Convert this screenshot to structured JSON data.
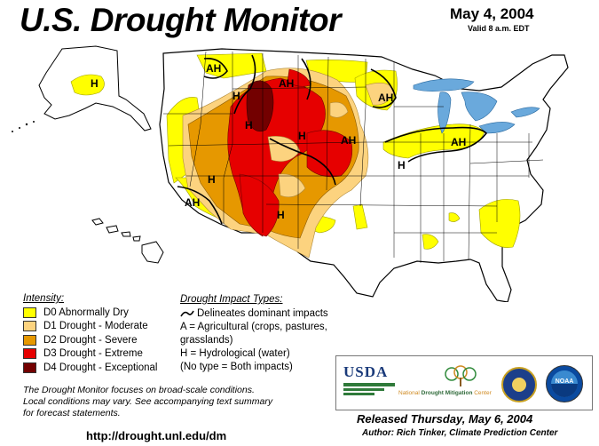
{
  "header": {
    "title": "U.S. Drought Monitor",
    "date": "May 4, 2004",
    "valid": "Valid 8 a.m. EDT"
  },
  "colors": {
    "D0": "#ffff00",
    "D1": "#fcd37f",
    "D2": "#e69800",
    "D3": "#e60000",
    "D4": "#730000",
    "water": "#6aa9dc",
    "land": "#ffffff"
  },
  "map_labels": {
    "ah": "AH",
    "h": "H"
  },
  "legend": {
    "heading": "Intensity:",
    "items": [
      {
        "label": "D0 Abnormally Dry",
        "color": "#ffff00"
      },
      {
        "label": "D1 Drought - Moderate",
        "color": "#fcd37f"
      },
      {
        "label": "D2 Drought - Severe",
        "color": "#e69800"
      },
      {
        "label": "D3 Drought - Extreme",
        "color": "#e60000"
      },
      {
        "label": "D4 Drought - Exceptional",
        "color": "#730000"
      }
    ]
  },
  "impact": {
    "heading": "Drought Impact Types:",
    "lines": [
      "Delineates dominant impacts",
      "A = Agricultural (crops, pastures,",
      "grasslands)",
      "H = Hydrological (water)",
      "(No type = Both impacts)"
    ]
  },
  "note": {
    "line1": "The Drought Monitor focuses on broad-scale conditions.",
    "line2": "Local conditions may vary.  See accompanying text summary",
    "line3": "for forecast statements."
  },
  "url": "http://drought.unl.edu/dm",
  "logos": {
    "usda": "USDA",
    "ndmc_prefix": "National ",
    "ndmc_bold": "Drought Mitigation",
    "ndmc_suffix": " Center",
    "noaa": "NOAA"
  },
  "footer": {
    "released": "Released Thursday, May 6, 2004",
    "author": "Author: Rich Tinker, Climate Prediction Center"
  }
}
